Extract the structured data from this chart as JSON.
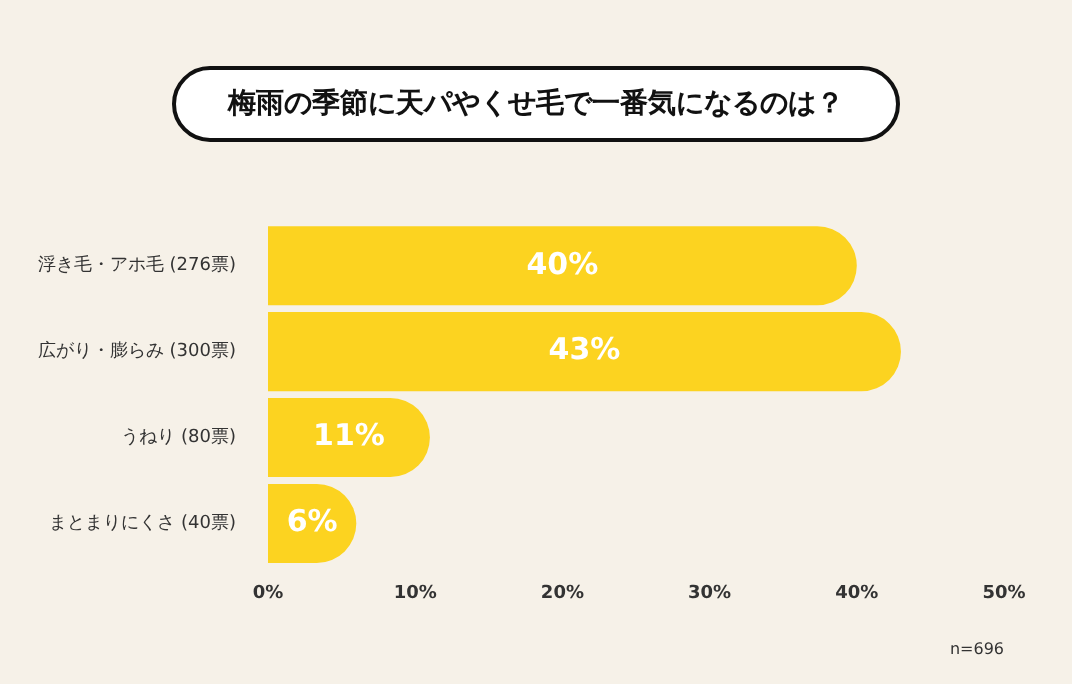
{
  "chart_data": {
    "type": "bar",
    "orientation": "horizontal",
    "title": "梅雨の季節に天パやくせ毛で一番気になるのは？",
    "categories": [
      "浮き毛・アホ毛 (276票)",
      "広がり・膨らみ (300票)",
      "うねり (80票)",
      "まとまりにくさ (40票)"
    ],
    "values": [
      40,
      43,
      11,
      6
    ],
    "color": "#fcd320",
    "value_labels": [
      "40%",
      "43%",
      "11%",
      "6%"
    ],
    "xlim": [
      0,
      50
    ],
    "xticks": [
      {
        "value": 0,
        "label": "0%"
      },
      {
        "value": 10,
        "label": "10%"
      },
      {
        "value": 20,
        "label": "20%"
      },
      {
        "value": 30,
        "label": "30%"
      },
      {
        "value": 40,
        "label": "40%"
      },
      {
        "value": 50,
        "label": "50%"
      }
    ],
    "grid": false,
    "legend": false,
    "annotations": [
      "n=696"
    ]
  }
}
